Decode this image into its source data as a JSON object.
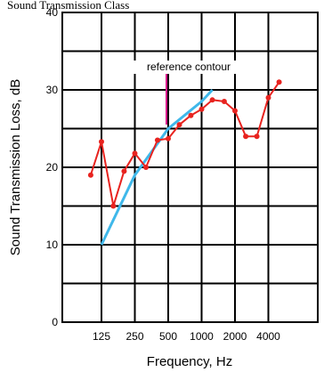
{
  "header_text": "Sound Transmission Class",
  "chart_data": {
    "type": "line",
    "title": "",
    "xlabel": "Frequency, Hz",
    "ylabel": "Sound Transmission Loss, dB",
    "ylim": [
      0,
      40
    ],
    "y_ticks": [
      "0",
      "10",
      "20",
      "30",
      "40"
    ],
    "x_tick_labels": [
      "125",
      "250",
      "500",
      "1000",
      "2000",
      "4000"
    ],
    "x_scale": "log, 1/3-octave bands",
    "grid": true,
    "annotation": "reference contour",
    "series": [
      {
        "name": "",
        "color": "#e8231f",
        "marker": "dot",
        "x": [
          100,
          125,
          160,
          200,
          250,
          315,
          400,
          500,
          630,
          800,
          1000,
          1250,
          1600,
          2000,
          2500,
          3150,
          4000,
          5000
        ],
        "y": [
          19,
          23.3,
          15,
          19.5,
          21.8,
          20,
          23.5,
          23.7,
          25.5,
          26.7,
          27.5,
          28.7,
          28.5,
          27.3,
          24,
          24,
          29,
          31
        ]
      },
      {
        "name": "reference contour",
        "color": "#3fb8ea",
        "marker": "none",
        "x": [
          125,
          250,
          500,
          1000,
          1250
        ],
        "y": [
          10,
          19,
          25,
          28.5,
          30
        ]
      }
    ]
  }
}
